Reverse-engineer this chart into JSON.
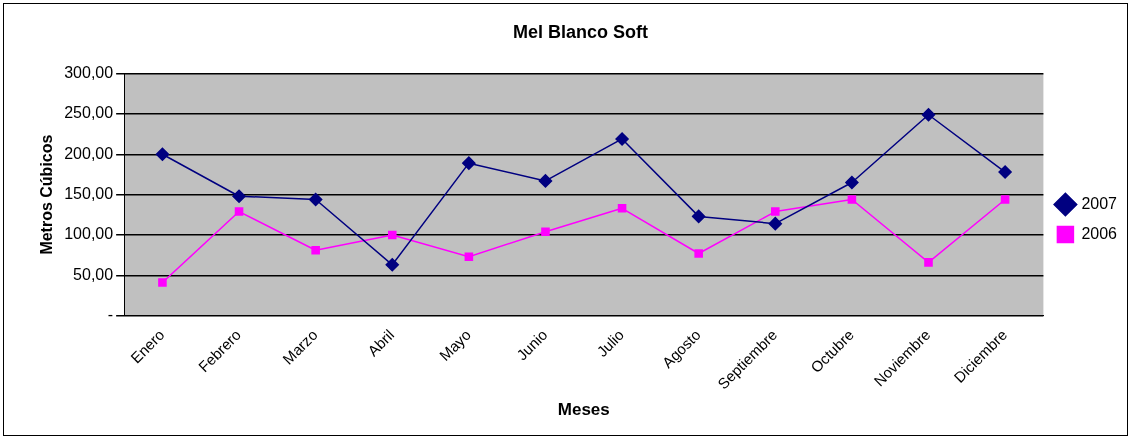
{
  "chart_data": {
    "type": "line",
    "title": "Mel Blanco Soft",
    "xlabel": "Meses",
    "ylabel": "Metros Cúbicos",
    "categories": [
      "Enero",
      "Febrero",
      "Marzo",
      "Abril",
      "Mayo",
      "Junio",
      "Julio",
      "Agosto",
      "Septiembre",
      "Octubre",
      "Noviembre",
      "Diciembre"
    ],
    "series": [
      {
        "name": "2007",
        "color": "#000080",
        "marker": "diamond",
        "values": [
          200,
          148,
          144,
          63,
          189,
          167,
          219,
          123,
          114,
          165,
          249,
          178
        ]
      },
      {
        "name": "2006",
        "color": "#ff00ff",
        "marker": "square",
        "values": [
          41,
          129,
          81,
          100,
          73,
          104,
          133,
          77,
          129,
          144,
          66,
          144
        ]
      }
    ],
    "ylim": [
      0,
      300
    ],
    "yticks": [
      {
        "value": 0,
        "label": "-"
      },
      {
        "value": 50,
        "label": "50,00"
      },
      {
        "value": 100,
        "label": "100,00"
      },
      {
        "value": 150,
        "label": "150,00"
      },
      {
        "value": 200,
        "label": "200,00"
      },
      {
        "value": 250,
        "label": "250,00"
      },
      {
        "value": 300,
        "label": "300,00"
      }
    ],
    "grid": "y",
    "legend": "right"
  }
}
